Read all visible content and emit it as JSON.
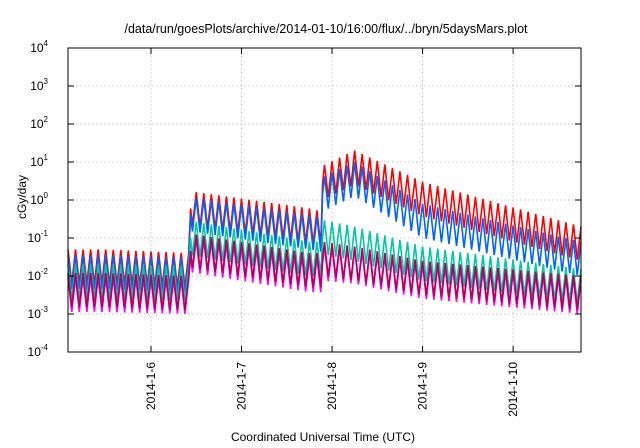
{
  "chart_data": {
    "type": "line",
    "title": "/data/run/goesPlots/archive/2014-01-10/16:00/flux/../bryn/5daysMars.plot",
    "xlabel": "Coordinated Universal Time (UTC)",
    "ylabel": "cGy/day",
    "yscale": "log",
    "ylim": [
      0.0001,
      10000
    ],
    "xlim": [
      "2014-01-05T02:00",
      "2014-01-10T18:00"
    ],
    "grid": true,
    "legend": "none",
    "y_ticks": [
      {
        "base": "10",
        "exp": "-4",
        "value": 0.0001
      },
      {
        "base": "10",
        "exp": "-3",
        "value": 0.001
      },
      {
        "base": "10",
        "exp": "-2",
        "value": 0.01
      },
      {
        "base": "10",
        "exp": "-1",
        "value": 0.1
      },
      {
        "base": "10",
        "exp": "0",
        "value": 1
      },
      {
        "base": "10",
        "exp": "1",
        "value": 10
      },
      {
        "base": "10",
        "exp": "2",
        "value": 100
      },
      {
        "base": "10",
        "exp": "3",
        "value": 1000
      },
      {
        "base": "10",
        "exp": "4",
        "value": 10000
      }
    ],
    "x_ticks": [
      {
        "label": "2014-1-6",
        "x": "2014-01-06T00:00"
      },
      {
        "label": "2014-1-7",
        "x": "2014-01-07T00:00"
      },
      {
        "label": "2014-1-8",
        "x": "2014-01-08T00:00"
      },
      {
        "label": "2014-1-9",
        "x": "2014-01-09T00:00"
      },
      {
        "label": "2014-1-10",
        "x": "2014-01-10T00:00"
      }
    ],
    "series": [
      {
        "color": "#ff0000",
        "period_hours": 2,
        "points": [
          [
            "2014-01-05T02:00",
            0.05
          ],
          [
            "2014-01-05T12:00",
            0.05
          ],
          [
            "2014-01-06T10:00",
            0.04
          ],
          [
            "2014-01-06T10:30",
            1.7
          ],
          [
            "2014-01-07T18:00",
            0.6
          ],
          [
            "2014-01-07T21:00",
            0.5
          ],
          [
            "2014-01-07T21:30",
            8
          ],
          [
            "2014-01-08T06:00",
            20
          ],
          [
            "2014-01-09T00:00",
            3
          ],
          [
            "2014-01-10T18:00",
            0.2
          ]
        ]
      },
      {
        "color": "#0064ff",
        "period_hours": 2,
        "points": [
          [
            "2014-01-05T02:00",
            0.035
          ],
          [
            "2014-01-05T12:00",
            0.035
          ],
          [
            "2014-01-06T10:00",
            0.03
          ],
          [
            "2014-01-06T10:30",
            1.2
          ],
          [
            "2014-01-07T18:00",
            0.4
          ],
          [
            "2014-01-07T21:00",
            0.35
          ],
          [
            "2014-01-07T21:30",
            4
          ],
          [
            "2014-01-08T06:00",
            10
          ],
          [
            "2014-01-09T00:00",
            0.8
          ],
          [
            "2014-01-10T18:00",
            0.08
          ]
        ]
      },
      {
        "color": "#00c8a0",
        "period_hours": 2,
        "points": [
          [
            "2014-01-05T02:00",
            0.02
          ],
          [
            "2014-01-05T12:00",
            0.02
          ],
          [
            "2014-01-06T10:00",
            0.018
          ],
          [
            "2014-01-06T10:30",
            0.28
          ],
          [
            "2014-01-07T18:00",
            0.08
          ],
          [
            "2014-01-07T21:00",
            0.08
          ],
          [
            "2014-01-07T21:30",
            0.3
          ],
          [
            "2014-01-08T06:00",
            0.2
          ],
          [
            "2014-01-09T00:00",
            0.06
          ],
          [
            "2014-01-10T18:00",
            0.015
          ]
        ]
      },
      {
        "color": "#ff00ff",
        "period_hours": 2,
        "points": [
          [
            "2014-01-05T02:00",
            0.009
          ],
          [
            "2014-01-05T12:00",
            0.009
          ],
          [
            "2014-01-06T10:00",
            0.008
          ],
          [
            "2014-01-06T10:30",
            0.1
          ],
          [
            "2014-01-07T18:00",
            0.03
          ],
          [
            "2014-01-07T21:00",
            0.03
          ],
          [
            "2014-01-07T21:30",
            0.06
          ],
          [
            "2014-01-08T06:00",
            0.05
          ],
          [
            "2014-01-09T00:00",
            0.02
          ],
          [
            "2014-01-10T18:00",
            0.008
          ]
        ]
      },
      {
        "color": "#b4005a",
        "period_hours": 2,
        "points": [
          [
            "2014-01-05T02:00",
            0.012
          ],
          [
            "2014-01-05T12:00",
            0.012
          ],
          [
            "2014-01-06T10:00",
            0.01
          ],
          [
            "2014-01-06T10:30",
            0.13
          ],
          [
            "2014-01-07T18:00",
            0.04
          ],
          [
            "2014-01-07T21:00",
            0.04
          ],
          [
            "2014-01-07T21:30",
            0.08
          ],
          [
            "2014-01-08T06:00",
            0.06
          ],
          [
            "2014-01-09T00:00",
            0.025
          ],
          [
            "2014-01-10T18:00",
            0.01
          ]
        ]
      }
    ]
  }
}
